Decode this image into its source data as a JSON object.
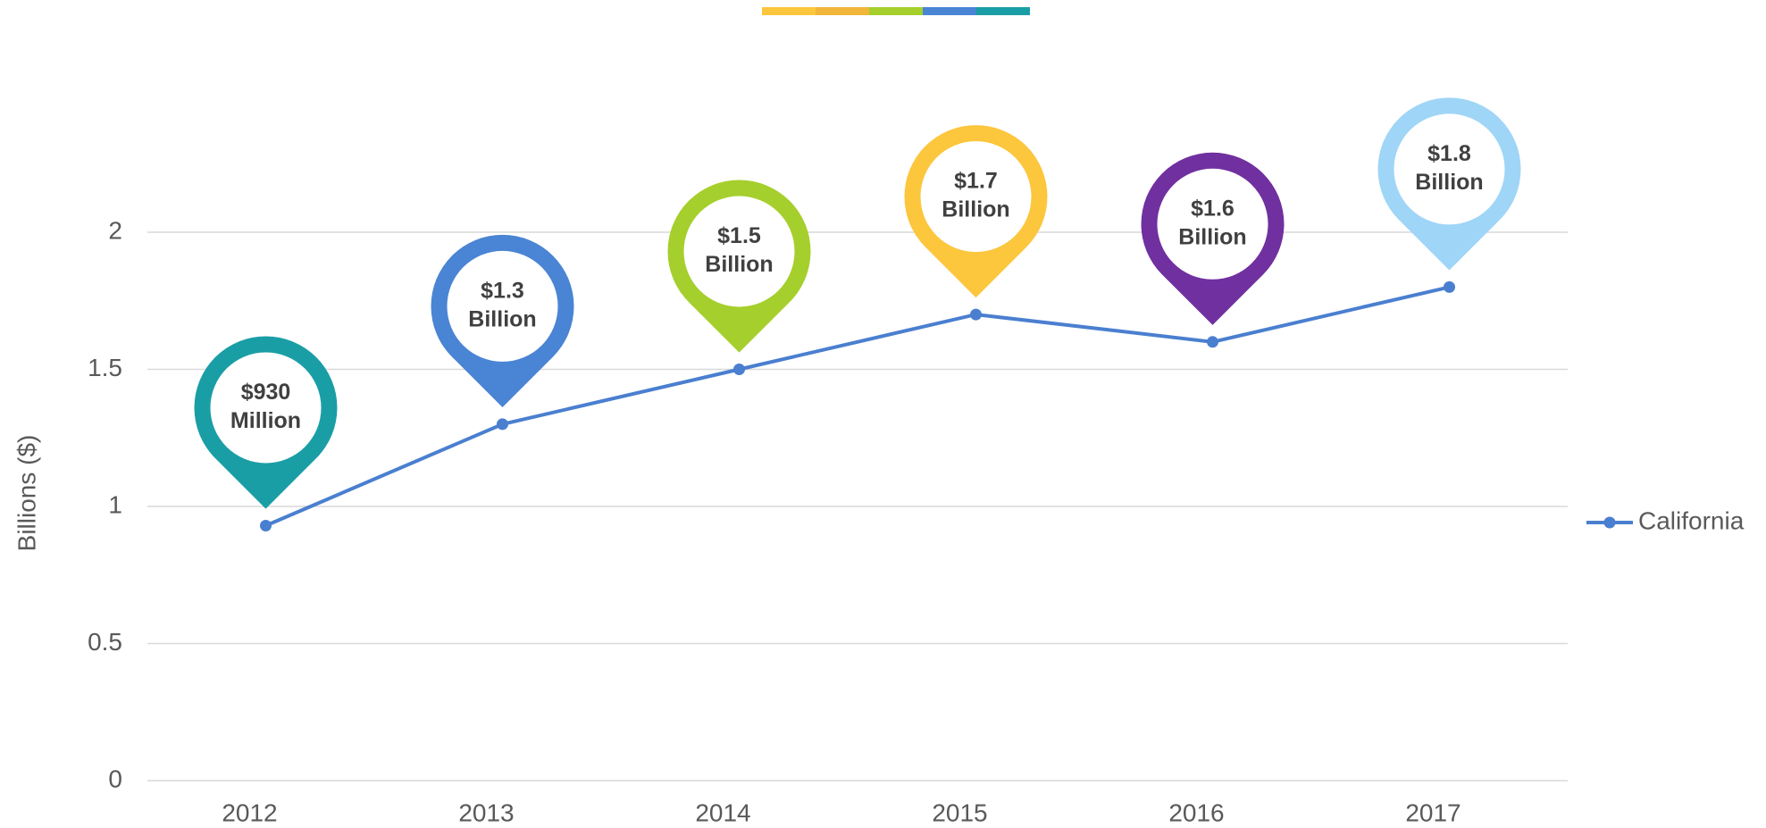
{
  "chart_data": {
    "type": "line",
    "y_axis_label": "Billions ($)",
    "categories": [
      "2012",
      "2013",
      "2014",
      "2015",
      "2016",
      "2017"
    ],
    "series": [
      {
        "name": "California",
        "color": "#4a7fd0",
        "values": [
          0.93,
          1.3,
          1.5,
          1.7,
          1.6,
          1.8
        ],
        "value_labels": [
          [
            "$930",
            "Million"
          ],
          [
            "$1.3",
            "Billion"
          ],
          [
            "$1.5",
            "Billion"
          ],
          [
            "$1.7",
            "Billion"
          ],
          [
            "$1.6",
            "Billion"
          ],
          [
            "$1.8",
            "Billion"
          ]
        ],
        "label_colors": [
          "#1a9ea6",
          "#4a84d4",
          "#a5cf2c",
          "#fcc63d",
          "#7030a0",
          "#9fd5f7"
        ]
      }
    ],
    "ylim": [
      0,
      2
    ],
    "yticks": [
      0,
      0.5,
      1,
      1.5,
      2
    ],
    "grid": true,
    "legend": "right"
  }
}
